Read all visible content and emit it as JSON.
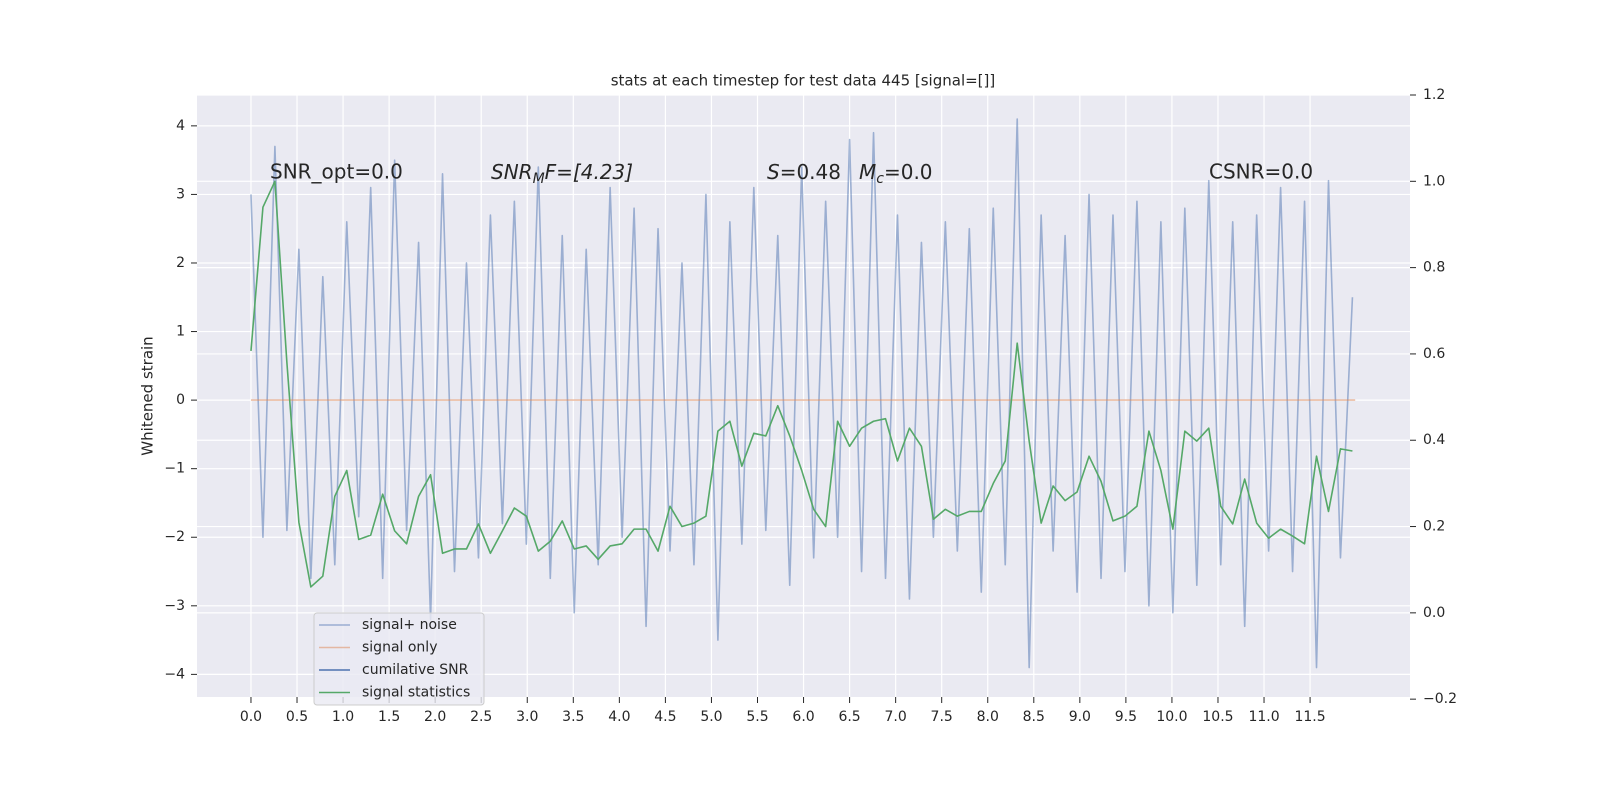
{
  "chart_data": {
    "type": "line",
    "title": "stats at each timestep for test data 445 [signal=[]]",
    "ylabel": "Whitened strain",
    "annotations": [
      "SNR_opt=0.0",
      [
        "SNR",
        "M",
        "F=[4.23]"
      ],
      [
        "S",
        "=0.48"
      ],
      [
        "M",
        "c",
        "=0.0"
      ],
      "CSNR=0.0"
    ],
    "xlim": [
      -0.586,
      12.585
    ],
    "xticks": [
      {
        "value": 0,
        "label": "0.0"
      },
      0.5,
      {
        "value": 1,
        "label": "1.0"
      },
      1.5,
      {
        "value": 2,
        "label": "2.0"
      },
      2.5,
      {
        "value": 3,
        "label": "3.0"
      },
      3.5,
      {
        "value": 4,
        "label": "4.0"
      },
      4.5,
      {
        "value": 5,
        "label": "5.0"
      },
      5.5,
      {
        "value": 6,
        "label": "6.0"
      },
      6.5,
      {
        "value": 7,
        "label": "7.0"
      },
      7.5,
      {
        "value": 8,
        "label": "8.0"
      },
      8.5,
      {
        "value": 9,
        "label": "9.0"
      },
      9.5,
      {
        "value": 10,
        "label": "10.0"
      },
      10.5,
      {
        "value": 11,
        "label": "11.0"
      },
      11.5
    ],
    "ylim": [
      -4.33,
      4.45
    ],
    "yticks": [
      {
        "value": -4,
        "label": "−4"
      },
      {
        "value": -3,
        "label": "−3"
      },
      {
        "value": -2,
        "label": "−2"
      },
      {
        "value": -1,
        "label": "−1"
      },
      0,
      1,
      2,
      3,
      4
    ],
    "y2lim": [
      -0.195,
      1.2
    ],
    "y2ticks": [
      {
        "value": -0.2,
        "label": "−0.2"
      },
      {
        "value": 0,
        "label": "0.0"
      },
      0.2,
      0.4,
      0.6,
      0.8,
      {
        "value": 1,
        "label": "1.0"
      },
      1.2
    ],
    "grid": true,
    "legend": "lower left",
    "series": [
      {
        "name": "signal+ noise",
        "color": "#4c72b0",
        "alpha": 0.5,
        "x": [
          0,
          0.13,
          0.26,
          0.39,
          0.52,
          0.65,
          0.78,
          0.91,
          1.04,
          1.17,
          1.3,
          1.43,
          1.56,
          1.69,
          1.82,
          1.95,
          2.08,
          2.21,
          2.34,
          2.47,
          2.6,
          2.73,
          2.86,
          2.99,
          3.12,
          3.25,
          3.38,
          3.51,
          3.64,
          3.77,
          3.9,
          4.03,
          4.16,
          4.29,
          4.42,
          4.55,
          4.68,
          4.81,
          4.94,
          5.07,
          5.2,
          5.33,
          5.46,
          5.59,
          5.72,
          5.85,
          5.98,
          6.11,
          6.24,
          6.37,
          6.5,
          6.63,
          6.76,
          6.89,
          7.02,
          7.15,
          7.28,
          7.41,
          7.54,
          7.67,
          7.8,
          7.93,
          8.06,
          8.19,
          8.32,
          8.45,
          8.58,
          8.71,
          8.84,
          8.97,
          9.1,
          9.23,
          9.36,
          9.49,
          9.62,
          9.75,
          9.88,
          10.01,
          10.14,
          10.27,
          10.4,
          10.53,
          10.66,
          10.79,
          10.92,
          11.05,
          11.18,
          11.31,
          11.44,
          11.57,
          11.7,
          11.83,
          11.96
        ],
        "values": [
          3.0,
          -2.0,
          3.7,
          -1.9,
          2.2,
          -2.6,
          1.8,
          -2.4,
          2.6,
          -1.7,
          3.1,
          -2.6,
          3.5,
          -1.9,
          2.3,
          -3.2,
          3.3,
          -2.5,
          2.0,
          -2.3,
          2.7,
          -1.8,
          2.9,
          -2.1,
          3.4,
          -2.6,
          2.4,
          -3.1,
          2.2,
          -2.4,
          3.1,
          -2.0,
          2.8,
          -3.3,
          2.5,
          -2.2,
          2.0,
          -2.4,
          3.0,
          -3.5,
          2.6,
          -2.1,
          3.1,
          -1.9,
          2.4,
          -2.7,
          3.4,
          -2.3,
          2.9,
          -2.0,
          3.8,
          -2.5,
          3.9,
          -2.6,
          2.7,
          -2.9,
          2.3,
          -2.0,
          2.6,
          -2.2,
          2.5,
          -2.8,
          2.8,
          -2.4,
          4.1,
          -3.9,
          2.7,
          -2.2,
          2.4,
          -2.8,
          3.0,
          -2.6,
          2.7,
          -2.5,
          2.9,
          -3.0,
          2.6,
          -3.1,
          2.8,
          -2.7,
          3.2,
          -2.4,
          2.6,
          -3.3,
          2.7,
          -2.2,
          3.1,
          -2.5,
          2.9,
          -3.9,
          3.2,
          -2.3,
          1.5
        ]
      },
      {
        "name": "signal only",
        "color": "#dd8452",
        "alpha": 0.5,
        "x": [
          0,
          11.99
        ],
        "values": [
          0,
          0
        ]
      },
      {
        "name": "cumilative SNR",
        "color": "#4c72b0",
        "x": [],
        "values": []
      },
      {
        "name": "signal statistics",
        "color": "#55a868",
        "axis": "y2",
        "x": [
          0,
          0.13,
          0.26,
          0.39,
          0.52,
          0.65,
          0.78,
          0.91,
          1.04,
          1.17,
          1.3,
          1.43,
          1.56,
          1.69,
          1.82,
          1.95,
          2.08,
          2.21,
          2.34,
          2.47,
          2.6,
          2.73,
          2.86,
          2.99,
          3.12,
          3.25,
          3.38,
          3.51,
          3.64,
          3.77,
          3.9,
          4.03,
          4.16,
          4.29,
          4.42,
          4.55,
          4.68,
          4.81,
          4.94,
          5.07,
          5.2,
          5.33,
          5.46,
          5.59,
          5.72,
          5.85,
          5.98,
          6.11,
          6.24,
          6.37,
          6.5,
          6.63,
          6.76,
          6.89,
          7.02,
          7.15,
          7.28,
          7.41,
          7.54,
          7.67,
          7.8,
          7.93,
          8.06,
          8.19,
          8.32,
          8.45,
          8.58,
          8.71,
          8.84,
          8.97,
          9.1,
          9.23,
          9.36,
          9.49,
          9.62,
          9.75,
          9.88,
          10.01,
          10.14,
          10.27,
          10.4,
          10.53,
          10.66,
          10.79,
          10.92,
          11.05,
          11.18,
          11.31,
          11.44,
          11.57,
          11.7,
          11.83,
          11.96
        ],
        "values": [
          0.607,
          0.94,
          1.0,
          0.58,
          0.21,
          0.06,
          0.085,
          0.27,
          0.33,
          0.17,
          0.18,
          0.275,
          0.19,
          0.16,
          0.27,
          0.32,
          0.138,
          0.148,
          0.148,
          0.206,
          0.138,
          0.19,
          0.243,
          0.224,
          0.143,
          0.166,
          0.213,
          0.148,
          0.155,
          0.124,
          0.155,
          0.16,
          0.194,
          0.194,
          0.143,
          0.247,
          0.2,
          0.208,
          0.224,
          0.421,
          0.444,
          0.34,
          0.416,
          0.41,
          0.48,
          0.41,
          0.33,
          0.24,
          0.2,
          0.444,
          0.386,
          0.428,
          0.444,
          0.45,
          0.352,
          0.428,
          0.386,
          0.217,
          0.24,
          0.224,
          0.235,
          0.235,
          0.3,
          0.352,
          0.625,
          0.398,
          0.208,
          0.294,
          0.26,
          0.28,
          0.363,
          0.305,
          0.213,
          0.224,
          0.247,
          0.421,
          0.33,
          0.194,
          0.421,
          0.398,
          0.428,
          0.247,
          0.206,
          0.31,
          0.208,
          0.173,
          0.194,
          0.178,
          0.16,
          0.363,
          0.235,
          0.38,
          0.375
        ]
      }
    ]
  }
}
